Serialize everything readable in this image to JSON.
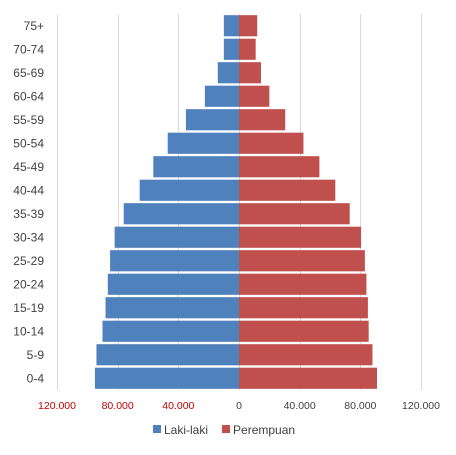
{
  "chart_data": {
    "type": "bar",
    "orientation": "horizontal",
    "subtype": "population-pyramid",
    "categories": [
      "0-4",
      "5-9",
      "10-14",
      "15-19",
      "20-24",
      "25-29",
      "30-34",
      "35-39",
      "40-44",
      "45-49",
      "50-54",
      "55-59",
      "60-64",
      "65-69",
      "70-74",
      "75+"
    ],
    "series": [
      {
        "name": "Laki-laki",
        "color": "#4f81bd",
        "side": "left",
        "values": [
          95000,
          94000,
          90000,
          88000,
          86500,
          85000,
          82000,
          76000,
          65500,
          56500,
          47000,
          35000,
          22500,
          14000,
          10000,
          10000
        ]
      },
      {
        "name": "Perempuan",
        "color": "#c0504d",
        "side": "right",
        "values": [
          91000,
          88000,
          85500,
          85000,
          84000,
          83000,
          80500,
          73000,
          63500,
          53000,
          42500,
          30500,
          20000,
          14500,
          11000,
          12000
        ]
      }
    ],
    "xlim": [
      -120000,
      120000
    ],
    "xticks": [
      {
        "value": -120000,
        "label": "120.000"
      },
      {
        "value": -80000,
        "label": "80.000"
      },
      {
        "value": -40000,
        "label": "40.000"
      },
      {
        "value": 0,
        "label": "0"
      },
      {
        "value": 40000,
        "label": "40.000"
      },
      {
        "value": 80000,
        "label": "80.000"
      },
      {
        "value": 120000,
        "label": "120.000"
      }
    ],
    "negative_tick_color": "#c00000",
    "positive_tick_color": "#404040",
    "grid": true,
    "legend_position": "bottom"
  }
}
